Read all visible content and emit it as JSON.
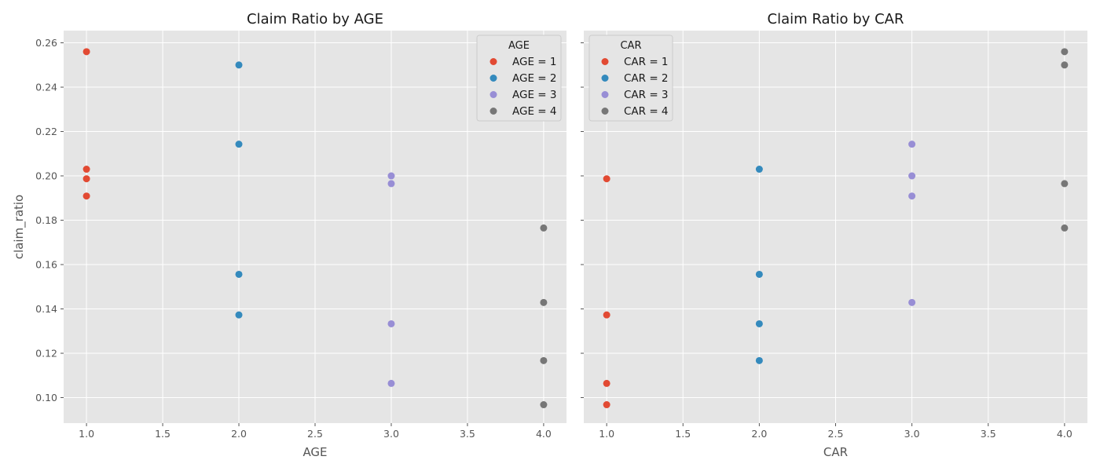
{
  "chart_data": [
    {
      "type": "scatter",
      "title": "Claim Ratio by AGE",
      "xlabel": "AGE",
      "ylabel": "claim_ratio",
      "xlim": [
        0.85,
        4.15
      ],
      "ylim": [
        0.0885,
        0.2655
      ],
      "xticks": [
        1.0,
        1.5,
        2.0,
        2.5,
        3.0,
        3.5,
        4.0
      ],
      "xtick_labels": [
        "1.0",
        "1.5",
        "2.0",
        "2.5",
        "3.0",
        "3.5",
        "4.0"
      ],
      "yticks": [
        0.1,
        0.12,
        0.14,
        0.16,
        0.18,
        0.2,
        0.22,
        0.24,
        0.26
      ],
      "ytick_labels": [
        "0.10",
        "0.12",
        "0.14",
        "0.16",
        "0.18",
        "0.20",
        "0.22",
        "0.24",
        "0.26"
      ],
      "show_ytick_labels": true,
      "legend": {
        "title": "AGE",
        "location": "upper right"
      },
      "grid": true,
      "series": [
        {
          "name": "AGE = 1",
          "color": "#E24A33",
          "points": [
            [
              1,
              0.256
            ],
            [
              1,
              0.203
            ],
            [
              1,
              0.1987
            ],
            [
              1,
              0.1909
            ]
          ]
        },
        {
          "name": "AGE = 2",
          "color": "#348ABD",
          "points": [
            [
              2,
              0.25
            ],
            [
              2,
              0.2143
            ],
            [
              2,
              0.1556
            ],
            [
              2,
              0.1373
            ]
          ]
        },
        {
          "name": "AGE = 3",
          "color": "#988ED5",
          "points": [
            [
              3,
              0.2
            ],
            [
              3,
              0.1965
            ],
            [
              3,
              0.1333
            ],
            [
              3,
              0.1064
            ]
          ]
        },
        {
          "name": "AGE = 4",
          "color": "#777777",
          "points": [
            [
              4,
              0.1765
            ],
            [
              4,
              0.1429
            ],
            [
              4,
              0.1167
            ],
            [
              4,
              0.0968
            ]
          ]
        }
      ]
    },
    {
      "type": "scatter",
      "title": "Claim Ratio by CAR",
      "xlabel": "CAR",
      "ylabel": "",
      "xlim": [
        0.85,
        4.15
      ],
      "ylim": [
        0.0885,
        0.2655
      ],
      "xticks": [
        1.0,
        1.5,
        2.0,
        2.5,
        3.0,
        3.5,
        4.0
      ],
      "xtick_labels": [
        "1.0",
        "1.5",
        "2.0",
        "2.5",
        "3.0",
        "3.5",
        "4.0"
      ],
      "yticks": [
        0.1,
        0.12,
        0.14,
        0.16,
        0.18,
        0.2,
        0.22,
        0.24,
        0.26
      ],
      "ytick_labels": [
        "",
        "",
        "",
        "",
        "",
        "",
        "",
        "",
        ""
      ],
      "show_ytick_labels": false,
      "legend": {
        "title": "CAR",
        "location": "upper left"
      },
      "grid": true,
      "series": [
        {
          "name": "CAR = 1",
          "color": "#E24A33",
          "points": [
            [
              1,
              0.1987
            ],
            [
              1,
              0.1373
            ],
            [
              1,
              0.1064
            ],
            [
              1,
              0.0968
            ]
          ]
        },
        {
          "name": "CAR = 2",
          "color": "#348ABD",
          "points": [
            [
              2,
              0.203
            ],
            [
              2,
              0.1556
            ],
            [
              2,
              0.1333
            ],
            [
              2,
              0.1167
            ]
          ]
        },
        {
          "name": "CAR = 3",
          "color": "#988ED5",
          "points": [
            [
              3,
              0.2143
            ],
            [
              3,
              0.2
            ],
            [
              3,
              0.1909
            ],
            [
              3,
              0.1429
            ]
          ]
        },
        {
          "name": "CAR = 4",
          "color": "#777777",
          "points": [
            [
              4,
              0.256
            ],
            [
              4,
              0.25
            ],
            [
              4,
              0.1965
            ],
            [
              4,
              0.1765
            ]
          ]
        }
      ]
    }
  ]
}
